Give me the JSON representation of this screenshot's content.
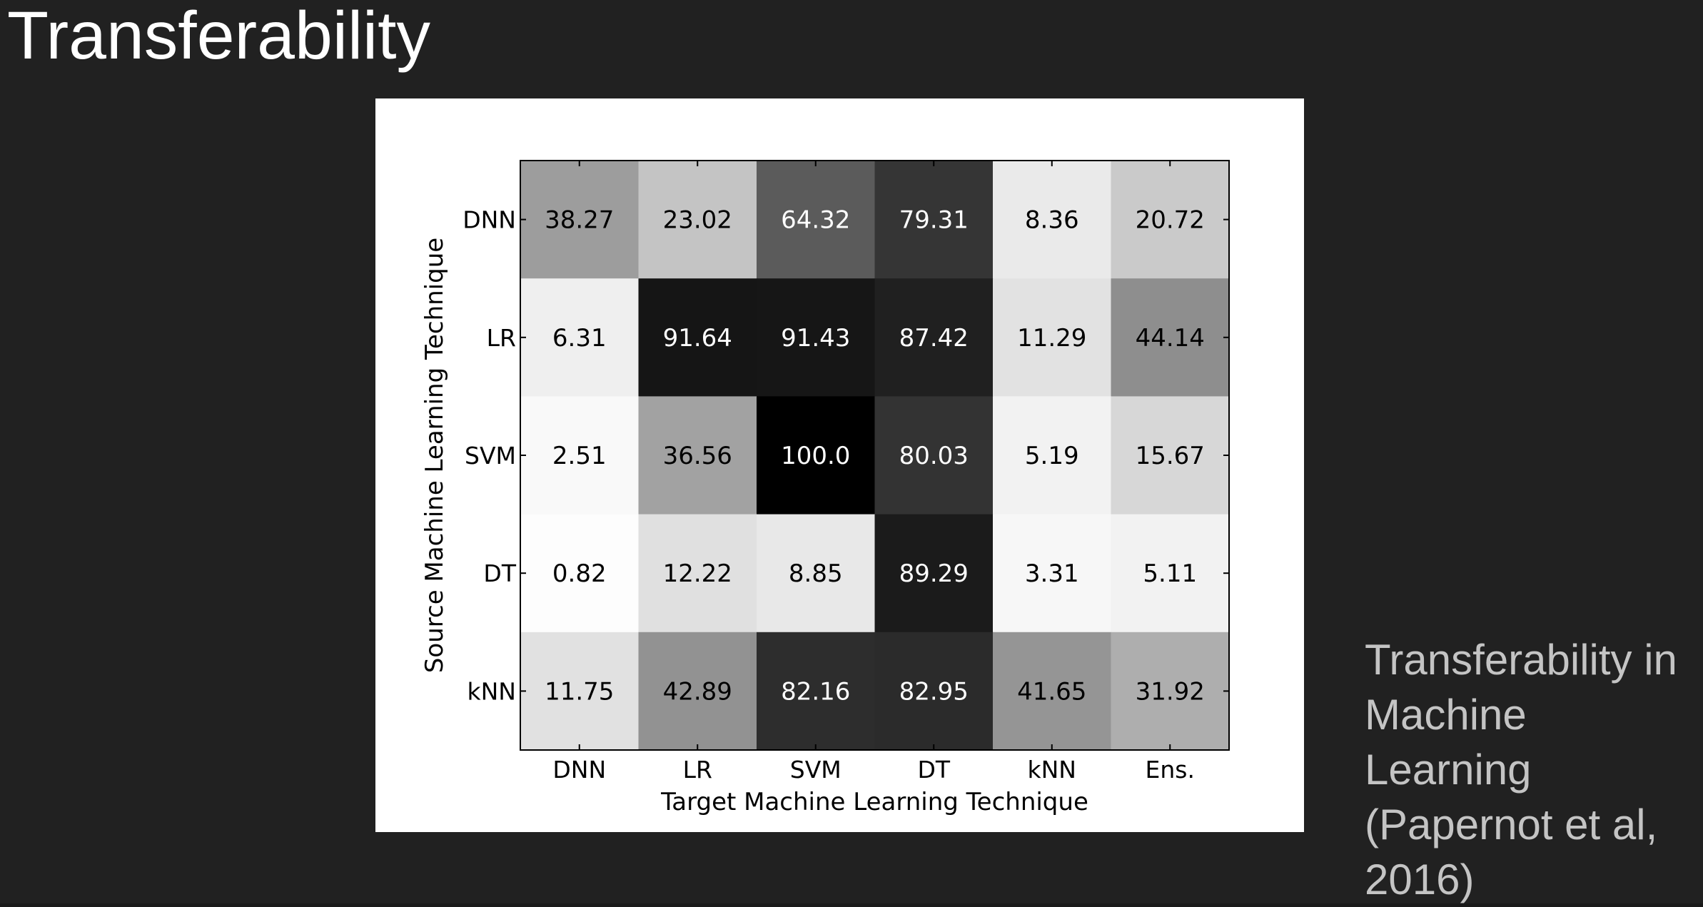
{
  "slide": {
    "title": "Transferability",
    "citation_lines": [
      "Transferability in",
      "Machine",
      "Learning",
      "(Papernot et al,",
      "2016)"
    ]
  },
  "chart_data": {
    "type": "heatmap",
    "title": "",
    "xlabel": "Target Machine Learning Technique",
    "ylabel": "Source Machine Learning Technique",
    "x_categories": [
      "DNN",
      "LR",
      "SVM",
      "DT",
      "kNN",
      "Ens."
    ],
    "y_categories": [
      "DNN",
      "LR",
      "SVM",
      "DT",
      "kNN"
    ],
    "values": [
      [
        "38.27",
        "23.02",
        "64.32",
        "79.31",
        "8.36",
        "20.72"
      ],
      [
        "6.31",
        "91.64",
        "91.43",
        "87.42",
        "11.29",
        "44.14"
      ],
      [
        "2.51",
        "36.56",
        "100.0",
        "80.03",
        "5.19",
        "15.67"
      ],
      [
        "0.82",
        "12.22",
        "8.85",
        "89.29",
        "3.31",
        "5.11"
      ],
      [
        "11.75",
        "42.89",
        "82.16",
        "82.95",
        "41.65",
        "31.92"
      ]
    ],
    "colormap": "grayscale (white = 0, black = 100)",
    "value_range": [
      0,
      100
    ],
    "grid": false,
    "legend": "none"
  }
}
